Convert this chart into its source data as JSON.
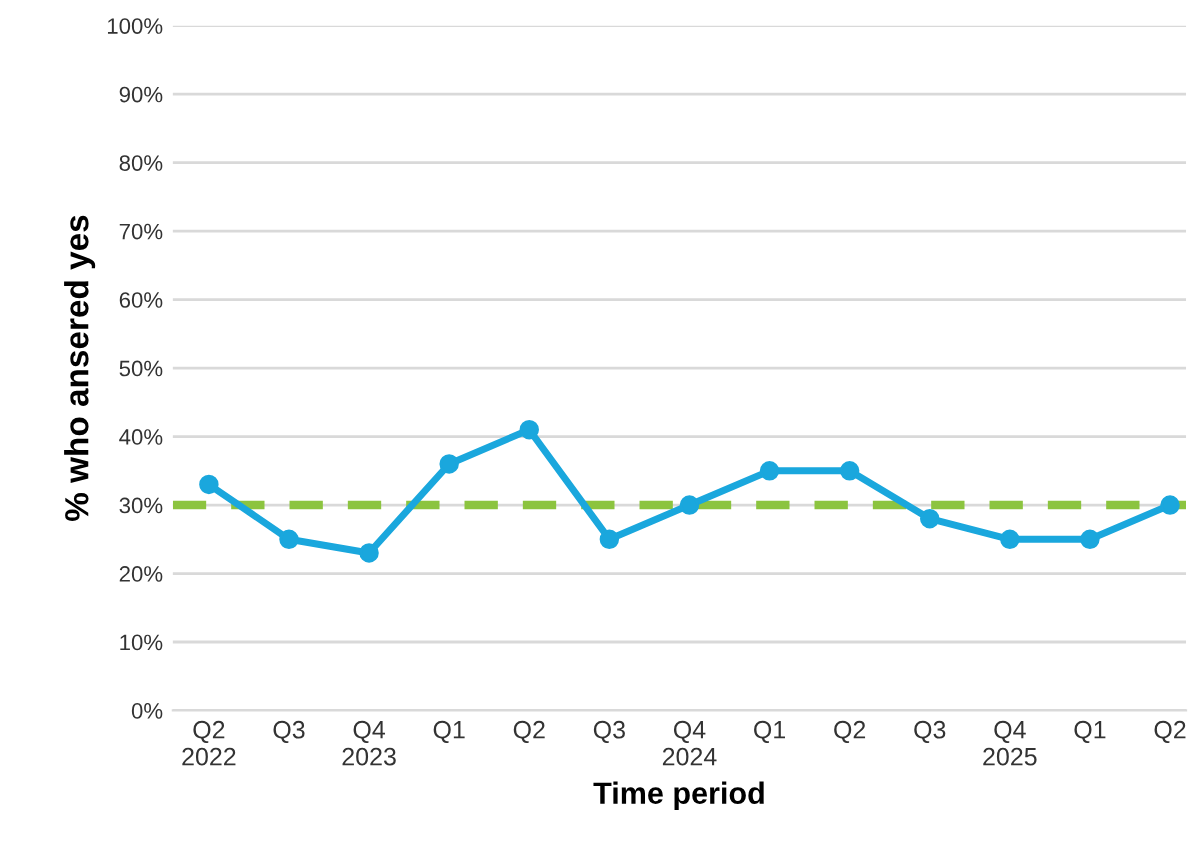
{
  "chart_data": {
    "type": "line",
    "xlabel": "Time period",
    "ylabel": "% who ansered yes",
    "categories": [
      "Q2\n2022",
      "Q3",
      "Q4\n2023",
      "Q1",
      "Q2",
      "Q3",
      "Q4\n2024",
      "Q1",
      "Q2",
      "Q3",
      "Q4\n2025",
      "Q1",
      "Q2"
    ],
    "series": [
      {
        "color": "#1aa7dd",
        "values": [
          33,
          25,
          23,
          36,
          41,
          25,
          30,
          35,
          35,
          28,
          25,
          25,
          30
        ]
      }
    ],
    "ylim": [
      0,
      100
    ],
    "yticks": [
      {
        "value": 0,
        "label": "0%"
      },
      {
        "value": 10,
        "label": "10%"
      },
      {
        "value": 20,
        "label": "20%"
      },
      {
        "value": 30,
        "label": "30%"
      },
      {
        "value": 40,
        "label": "40%"
      },
      {
        "value": 50,
        "label": "50%"
      },
      {
        "value": 60,
        "label": "60%"
      },
      {
        "value": 70,
        "label": "70%"
      },
      {
        "value": 80,
        "label": "80%"
      },
      {
        "value": 90,
        "label": "90%"
      },
      {
        "value": 100,
        "label": "100%"
      }
    ],
    "ref_lines": [
      {
        "axis": "y",
        "value": 30,
        "label": null,
        "color": "#8cc43f",
        "line_style": "dashed"
      }
    ],
    "grid": "y",
    "marker": "circle",
    "line_style": "solid"
  }
}
